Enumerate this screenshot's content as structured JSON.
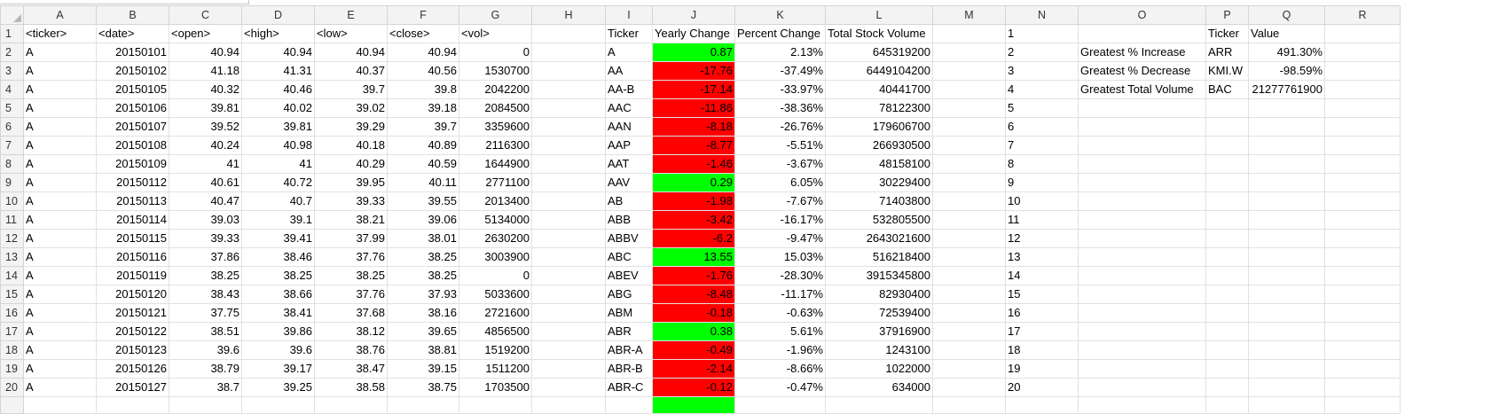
{
  "spreadsheet": {
    "columns": [
      "A",
      "B",
      "C",
      "D",
      "E",
      "F",
      "G",
      "H",
      "I",
      "J",
      "K",
      "L",
      "M",
      "N",
      "O",
      "P",
      "Q",
      "R"
    ],
    "rows": [
      {
        "n": "1",
        "a": "<ticker>",
        "b": "<date>",
        "c": "<open>",
        "d": "<high>",
        "e": "<low>",
        "f": "<close>",
        "g": "<vol>",
        "i": "Ticker",
        "j": "Yearly Change",
        "k": "Percent Change",
        "l": "Total Stock Volume",
        "o": "",
        "p": "Ticker",
        "q": "Value"
      },
      {
        "n": "2",
        "a": "A",
        "b": "20150101",
        "c": "40.94",
        "d": "40.94",
        "e": "40.94",
        "f": "40.94",
        "g": "0",
        "i": "A",
        "j": "0.87",
        "k": "2.13%",
        "l": "645319200",
        "o": "Greatest % Increase",
        "p": "ARR",
        "q": "491.30%"
      },
      {
        "n": "3",
        "a": "A",
        "b": "20150102",
        "c": "41.18",
        "d": "41.31",
        "e": "40.37",
        "f": "40.56",
        "g": "1530700",
        "i": "AA",
        "j": "-17.76",
        "k": "-37.49%",
        "l": "6449104200",
        "o": "Greatest % Decrease",
        "p": "KMI.W",
        "q": "-98.59%"
      },
      {
        "n": "4",
        "a": "A",
        "b": "20150105",
        "c": "40.32",
        "d": "40.46",
        "e": "39.7",
        "f": "39.8",
        "g": "2042200",
        "i": "AA-B",
        "j": "-17.14",
        "k": "-33.97%",
        "l": "40441700",
        "o": "Greatest Total Volume",
        "p": "BAC",
        "q": "21277761900"
      },
      {
        "n": "5",
        "a": "A",
        "b": "20150106",
        "c": "39.81",
        "d": "40.02",
        "e": "39.02",
        "f": "39.18",
        "g": "2084500",
        "i": "AAC",
        "j": "-11.86",
        "k": "-38.36%",
        "l": "78122300"
      },
      {
        "n": "6",
        "a": "A",
        "b": "20150107",
        "c": "39.52",
        "d": "39.81",
        "e": "39.29",
        "f": "39.7",
        "g": "3359600",
        "i": "AAN",
        "j": "-8.18",
        "k": "-26.76%",
        "l": "179606700"
      },
      {
        "n": "7",
        "a": "A",
        "b": "20150108",
        "c": "40.24",
        "d": "40.98",
        "e": "40.18",
        "f": "40.89",
        "g": "2116300",
        "i": "AAP",
        "j": "-8.77",
        "k": "-5.51%",
        "l": "266930500"
      },
      {
        "n": "8",
        "a": "A",
        "b": "20150109",
        "c": "41",
        "d": "41",
        "e": "40.29",
        "f": "40.59",
        "g": "1644900",
        "i": "AAT",
        "j": "-1.46",
        "k": "-3.67%",
        "l": "48158100"
      },
      {
        "n": "9",
        "a": "A",
        "b": "20150112",
        "c": "40.61",
        "d": "40.72",
        "e": "39.95",
        "f": "40.11",
        "g": "2771100",
        "i": "AAV",
        "j": "0.29",
        "k": "6.05%",
        "l": "30229400"
      },
      {
        "n": "10",
        "a": "A",
        "b": "20150113",
        "c": "40.47",
        "d": "40.7",
        "e": "39.33",
        "f": "39.55",
        "g": "2013400",
        "i": "AB",
        "j": "-1.98",
        "k": "-7.67%",
        "l": "71403800"
      },
      {
        "n": "11",
        "a": "A",
        "b": "20150114",
        "c": "39.03",
        "d": "39.1",
        "e": "38.21",
        "f": "39.06",
        "g": "5134000",
        "i": "ABB",
        "j": "-3.42",
        "k": "-16.17%",
        "l": "532805500"
      },
      {
        "n": "12",
        "a": "A",
        "b": "20150115",
        "c": "39.33",
        "d": "39.41",
        "e": "37.99",
        "f": "38.01",
        "g": "2630200",
        "i": "ABBV",
        "j": "-6.2",
        "k": "-9.47%",
        "l": "2643021600"
      },
      {
        "n": "13",
        "a": "A",
        "b": "20150116",
        "c": "37.86",
        "d": "38.46",
        "e": "37.76",
        "f": "38.25",
        "g": "3003900",
        "i": "ABC",
        "j": "13.55",
        "k": "15.03%",
        "l": "516218400"
      },
      {
        "n": "14",
        "a": "A",
        "b": "20150119",
        "c": "38.25",
        "d": "38.25",
        "e": "38.25",
        "f": "38.25",
        "g": "0",
        "i": "ABEV",
        "j": "-1.76",
        "k": "-28.30%",
        "l": "3915345800"
      },
      {
        "n": "15",
        "a": "A",
        "b": "20150120",
        "c": "38.43",
        "d": "38.66",
        "e": "37.76",
        "f": "37.93",
        "g": "5033600",
        "i": "ABG",
        "j": "-8.48",
        "k": "-11.17%",
        "l": "82930400"
      },
      {
        "n": "16",
        "a": "A",
        "b": "20150121",
        "c": "37.75",
        "d": "38.41",
        "e": "37.68",
        "f": "38.16",
        "g": "2721600",
        "i": "ABM",
        "j": "-0.18",
        "k": "-0.63%",
        "l": "72539400"
      },
      {
        "n": "17",
        "a": "A",
        "b": "20150122",
        "c": "38.51",
        "d": "39.86",
        "e": "38.12",
        "f": "39.65",
        "g": "4856500",
        "i": "ABR",
        "j": "0.38",
        "k": "5.61%",
        "l": "37916900"
      },
      {
        "n": "18",
        "a": "A",
        "b": "20150123",
        "c": "39.6",
        "d": "39.6",
        "e": "38.76",
        "f": "38.81",
        "g": "1519200",
        "i": "ABR-A",
        "j": "-0.49",
        "k": "-1.96%",
        "l": "1243100"
      },
      {
        "n": "19",
        "a": "A",
        "b": "20150126",
        "c": "38.79",
        "d": "39.17",
        "e": "38.47",
        "f": "39.15",
        "g": "1511200",
        "i": "ABR-B",
        "j": "-2.14",
        "k": "-8.66%",
        "l": "1022000"
      },
      {
        "n": "20",
        "a": "A",
        "b": "20150127",
        "c": "38.7",
        "d": "39.25",
        "e": "38.58",
        "f": "38.75",
        "g": "1703500",
        "i": "ABR-C",
        "j": "-0.12",
        "k": "-0.47%",
        "l": "634000"
      }
    ],
    "conditional_colors": {
      "positive": "#00ff00",
      "negative": "#ff0000"
    }
  }
}
